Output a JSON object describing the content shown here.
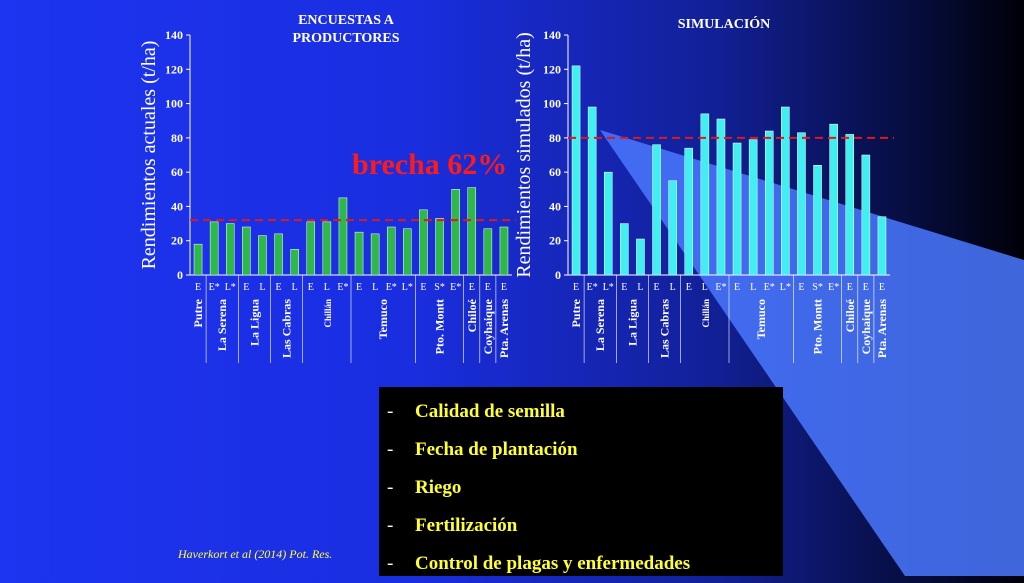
{
  "colors": {
    "bar_left": "#2fb84a",
    "bar_right": "#40f0f0",
    "ref_line": "#e01818",
    "brecha": "#ff1a1a",
    "list_text": "#ffff33",
    "citation": "#ffff44"
  },
  "brecha_label": "brecha 62%",
  "citation": "Haverkort et al (2014) Pot. Res.",
  "factors": [
    "Calidad de semilla",
    "Fecha de plantación",
    "Riego",
    "Fertilización",
    "Control de plagas y enfermedades"
  ],
  "chart_data": [
    {
      "type": "bar",
      "title": "ENCUESTAS A PRODUCTORES",
      "ylabel": "Rendimientos actuales (t/ha)",
      "ylim": [
        0,
        140
      ],
      "yticks": [
        0,
        20,
        40,
        60,
        80,
        100,
        120,
        140
      ],
      "categories": [
        "E",
        "E*",
        "L*",
        "E",
        "L",
        "E",
        "L",
        "E",
        "L",
        "E*",
        "E",
        "L",
        "E*",
        "L*",
        "E",
        "S*",
        "E*",
        "E",
        "E",
        "E"
      ],
      "values": [
        18,
        31,
        30,
        28,
        23,
        24,
        15,
        31,
        31,
        45,
        25,
        24,
        28,
        27,
        38,
        33,
        50,
        51,
        27,
        28
      ],
      "reference_line": 32,
      "groups": [
        {
          "label": "Putre",
          "from": 0,
          "to": 0
        },
        {
          "label": "La Serena",
          "from": 1,
          "to": 2
        },
        {
          "label": "La Ligua",
          "from": 3,
          "to": 4
        },
        {
          "label": "Las Cabras",
          "from": 5,
          "to": 6
        },
        {
          "label": "Chillán",
          "from": 7,
          "to": 9
        },
        {
          "label": "Temuco",
          "from": 10,
          "to": 13
        },
        {
          "label": "Pto. Montt",
          "from": 14,
          "to": 16
        },
        {
          "label": "Chiloé",
          "from": 17,
          "to": 17
        },
        {
          "label": "Coyhaique",
          "from": 18,
          "to": 18
        },
        {
          "label": "Pta. Arenas",
          "from": 19,
          "to": 19
        }
      ]
    },
    {
      "type": "bar",
      "title": "SIMULACIÓN",
      "ylabel": "Rendimientos simulados (t/ha)",
      "ylim": [
        0,
        140
      ],
      "yticks": [
        0,
        20,
        40,
        60,
        80,
        100,
        120,
        140
      ],
      "categories": [
        "E",
        "E*",
        "L*",
        "E",
        "L",
        "E",
        "L",
        "E",
        "L",
        "E*",
        "E",
        "L",
        "E*",
        "L*",
        "E",
        "S*",
        "E*",
        "E",
        "E",
        "E"
      ],
      "values": [
        122,
        98,
        60,
        30,
        21,
        76,
        55,
        74,
        94,
        91,
        77,
        79,
        84,
        98,
        83,
        64,
        88,
        82,
        70,
        34
      ],
      "reference_line": 80,
      "groups": [
        {
          "label": "Putre",
          "from": 0,
          "to": 0
        },
        {
          "label": "La Serena",
          "from": 1,
          "to": 2
        },
        {
          "label": "La Ligua",
          "from": 3,
          "to": 4
        },
        {
          "label": "Las Cabras",
          "from": 5,
          "to": 6
        },
        {
          "label": "Chillán",
          "from": 7,
          "to": 9
        },
        {
          "label": "Temuco",
          "from": 10,
          "to": 13
        },
        {
          "label": "Pto. Montt",
          "from": 14,
          "to": 16
        },
        {
          "label": "Chiloé",
          "from": 17,
          "to": 17
        },
        {
          "label": "Coyhaique",
          "from": 18,
          "to": 18
        },
        {
          "label": "Pta. Arenas",
          "from": 19,
          "to": 19
        }
      ]
    }
  ]
}
